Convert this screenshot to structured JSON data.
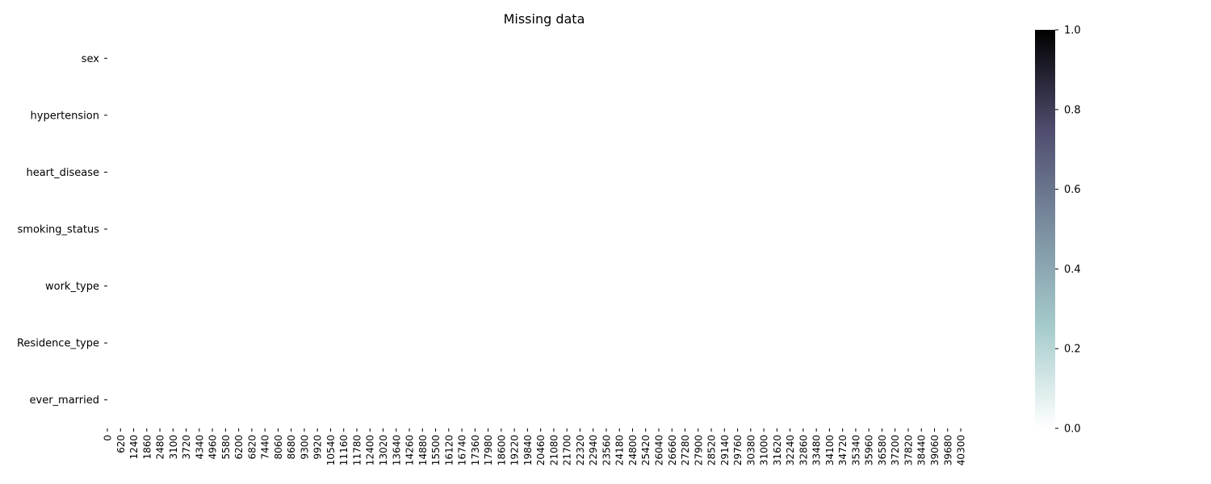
{
  "chart_data": {
    "type": "heatmap",
    "title": "Missing data",
    "xlabel": "",
    "ylabel": "",
    "rows": [
      "sex",
      "hypertension",
      "heart_disease",
      "smoking_status",
      "work_type",
      "Residence_type",
      "ever_married"
    ],
    "x_ticks": [
      0,
      620,
      1240,
      1860,
      2480,
      3100,
      3720,
      4340,
      4960,
      5580,
      6200,
      6820,
      7440,
      8060,
      8680,
      9300,
      9920,
      10540,
      11160,
      11780,
      12400,
      13020,
      13640,
      14260,
      14880,
      15500,
      16120,
      16740,
      17360,
      17980,
      18600,
      19220,
      19840,
      20460,
      21080,
      21700,
      22320,
      22940,
      23560,
      24180,
      24800,
      25420,
      26040,
      26660,
      27280,
      27900,
      28520,
      29140,
      29760,
      30380,
      31000,
      31620,
      32240,
      32860,
      33480,
      34100,
      34720,
      35340,
      35960,
      36580,
      37200,
      37820,
      38440,
      39060,
      39680,
      40300
    ],
    "x_range": [
      0,
      40909
    ],
    "missing_value": 0,
    "colorbar": {
      "range": [
        0,
        1
      ],
      "ticks": [
        "0.0",
        "0.2",
        "0.4",
        "0.6",
        "0.8",
        "1.0"
      ],
      "colormap": "bone_r",
      "stops": [
        "#ffffff",
        "#a6cccc",
        "#7b8fa1",
        "#4f4c6e",
        "#000000"
      ]
    },
    "grid": false
  }
}
